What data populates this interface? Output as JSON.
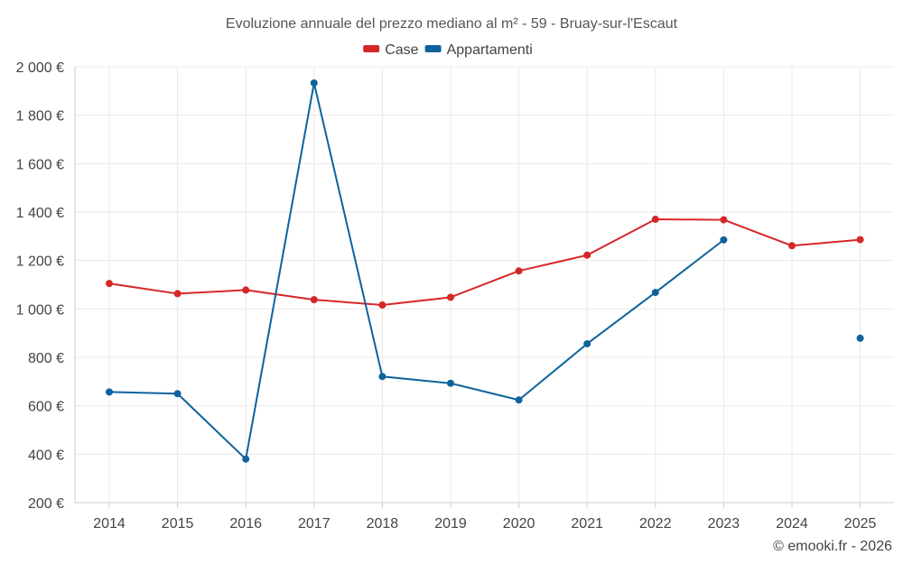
{
  "chart_data": {
    "type": "line",
    "title": "Evoluzione annuale del prezzo mediano al m² - 59 - Bruay-sur-l'Escaut",
    "categories": [
      "2014",
      "2015",
      "2016",
      "2017",
      "2018",
      "2019",
      "2020",
      "2021",
      "2022",
      "2023",
      "2024",
      "2025"
    ],
    "series": [
      {
        "name": "Case",
        "color": "#d62728",
        "values": [
          1105,
          1063,
          1078,
          1038,
          1016,
          1048,
          1157,
          1222,
          1370,
          1368,
          1261,
          1286
        ]
      },
      {
        "name": "Appartamenti",
        "color": "#0e639c",
        "values": [
          657,
          650,
          380,
          1933,
          721,
          693,
          624,
          856,
          1068,
          1285,
          null,
          879
        ]
      }
    ],
    "ylim": [
      200,
      2000
    ],
    "yticks": [
      200,
      400,
      600,
      800,
      1000,
      1200,
      1400,
      1600,
      1800,
      2000
    ],
    "ytick_labels": [
      "200 €",
      "400 €",
      "600 €",
      "800 €",
      "1 000 €",
      "1 200 €",
      "1 400 €",
      "1 600 €",
      "1 800 €",
      "2 000 €"
    ],
    "xlabel": "",
    "ylabel": "",
    "grid": true,
    "legend": "top-center"
  },
  "credit": "© emooki.fr - 2026"
}
